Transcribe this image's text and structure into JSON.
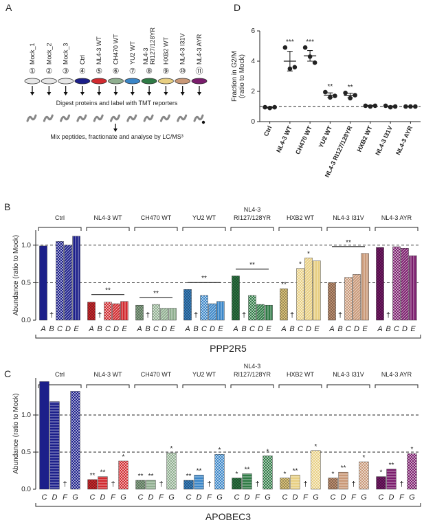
{
  "schematic": {
    "label": "A",
    "samples": [
      {
        "name": [
          "Mock_1"
        ],
        "number": "①",
        "color": "#e6e6e6"
      },
      {
        "name": [
          "Mock_2"
        ],
        "number": "②",
        "color": "#e6e6e6"
      },
      {
        "name": [
          "Mock_3"
        ],
        "number": "③",
        "color": "#e6e6e6"
      },
      {
        "name": [
          "Ctrl"
        ],
        "number": "④",
        "color": "#1c1f8a"
      },
      {
        "name": [
          "NL4-3 WT"
        ],
        "number": "⑤",
        "color": "#d12a2f"
      },
      {
        "name": [
          "CH470 WT"
        ],
        "number": "⑥",
        "color": "#8fae8f"
      },
      {
        "name": [
          "YU2 WT"
        ],
        "number": "⑦",
        "color": "#3b86c8"
      },
      {
        "name": [
          "NL4-3",
          "RI127/128YR"
        ],
        "number": "⑧",
        "color": "#2f7a45"
      },
      {
        "name": [
          "HXB2 WT"
        ],
        "number": "⑨",
        "color": "#e8cf82"
      },
      {
        "name": [
          "NL4-3 I31V"
        ],
        "number": "⑩",
        "color": "#c99877"
      },
      {
        "name": [
          "NL4-3 AYR"
        ],
        "number": "⑪",
        "color": "#7a1c6c"
      }
    ],
    "step1": "Digest proteins and label with TMT reporters",
    "step2": "Mix peptides, fractionate and analyse by LC/MS³"
  },
  "chart_data": [
    {
      "type": "dot",
      "label": "D",
      "ylabel": [
        "Fraction in G2/M",
        "(ratio to Mock)"
      ],
      "categories": [
        "Ctrl",
        "NL4-3 WT",
        "CH470 WT",
        "YU2 WT",
        "NL4-3 RI127/128YR",
        "HXB2 WT",
        "NL4-3 I31V",
        "NL4-3 AYR"
      ],
      "points": [
        [
          0.95,
          0.9,
          0.95
        ],
        [
          4.9,
          3.5,
          3.6
        ],
        [
          4.9,
          4.3,
          3.9
        ],
        [
          1.95,
          1.6,
          1.7
        ],
        [
          1.9,
          1.55,
          1.75
        ],
        [
          1.05,
          1.0,
          1.05
        ],
        [
          1.05,
          0.95,
          1.0
        ],
        [
          1.0,
          1.0,
          1.0
        ]
      ],
      "means": [
        0.93,
        4.0,
        4.35,
        1.75,
        1.73,
        1.05,
        1.0,
        1.0
      ],
      "errors": [
        0.03,
        0.65,
        0.35,
        0.15,
        0.15,
        0.03,
        0.04,
        0.02
      ],
      "significance": [
        null,
        "***",
        "***",
        "**",
        "**",
        null,
        null,
        null
      ],
      "reference_line": 1,
      "color": "#222222",
      "ylim": [
        0,
        6
      ],
      "yticks": [
        0,
        2,
        4,
        6
      ]
    },
    {
      "type": "grouped-bar",
      "label": "B",
      "title": "PPP2R5",
      "ylabel": "Abundance (ratio to Mock)",
      "groups": [
        [
          "Ctrl"
        ],
        [
          "NL4-3 WT"
        ],
        [
          "CH470 WT"
        ],
        [
          "YU2 WT"
        ],
        [
          "NL4-3",
          "RI127/128YR"
        ],
        [
          "HXB2 WT"
        ],
        [
          "NL4-3 I31V"
        ],
        [
          "NL4-3 AYR"
        ]
      ],
      "colors": [
        "#1c1f8a",
        "#d12a2f",
        "#8fae8f",
        "#3b86c8",
        "#2f7a45",
        "#e8cf82",
        "#c99877",
        "#7a1c6c"
      ],
      "subgroups": [
        "A",
        "B",
        "C",
        "D",
        "E"
      ],
      "missing_marker": "†",
      "values": [
        [
          0.99,
          null,
          1.05,
          1.0,
          1.12
        ],
        [
          0.24,
          null,
          0.24,
          0.22,
          0.25
        ],
        [
          0.2,
          null,
          0.21,
          0.16,
          0.16
        ],
        [
          0.41,
          null,
          0.33,
          0.22,
          0.25
        ],
        [
          0.59,
          null,
          0.33,
          0.21,
          0.2
        ],
        [
          0.42,
          null,
          0.69,
          0.83,
          0.79
        ],
        [
          0.5,
          null,
          0.57,
          0.61,
          0.89
        ],
        [
          0.97,
          null,
          0.98,
          0.96,
          0.86
        ]
      ],
      "bar_significance": [
        [
          null,
          null,
          null,
          null,
          null
        ],
        [
          null,
          null,
          null,
          null,
          null
        ],
        [
          null,
          null,
          null,
          null,
          null
        ],
        [
          null,
          null,
          null,
          null,
          null
        ],
        [
          null,
          null,
          null,
          null,
          null
        ],
        [
          "**",
          null,
          "*",
          "*",
          null
        ],
        [
          null,
          null,
          null,
          null,
          null
        ],
        [
          null,
          null,
          null,
          null,
          null
        ]
      ],
      "bracket_significance": [
        null,
        "**",
        "**",
        "**",
        "**",
        null,
        "**",
        null
      ],
      "reference_lines": [
        0.5,
        1
      ],
      "ylim": [
        0,
        1.2
      ],
      "yticks": [
        {
          "value": 0,
          "label": "0.0"
        },
        {
          "value": 0.5,
          "label": "0.5"
        },
        {
          "value": 1,
          "label": "1.0"
        }
      ]
    },
    {
      "type": "grouped-bar",
      "label": "C",
      "title": "APOBEC3",
      "ylabel": "Abundance (ratio to Mock)",
      "groups": [
        [
          "Ctrl"
        ],
        [
          "NL4-3 WT"
        ],
        [
          "CH470 WT"
        ],
        [
          "YU2 WT"
        ],
        [
          "NL4-3",
          "RI127/128YR"
        ],
        [
          "HXB2 WT"
        ],
        [
          "NL4-3 I31V"
        ],
        [
          "NL4-3 AYR"
        ]
      ],
      "colors": [
        "#1c1f8a",
        "#d12a2f",
        "#8fae8f",
        "#3b86c8",
        "#2f7a45",
        "#e8cf82",
        "#c99877",
        "#7a1c6c"
      ],
      "subgroups": [
        "C",
        "D",
        "F",
        "G"
      ],
      "missing_marker": "†",
      "values": [
        [
          1.45,
          1.18,
          null,
          1.32
        ],
        [
          0.13,
          0.17,
          null,
          0.38
        ],
        [
          0.12,
          0.12,
          null,
          0.49
        ],
        [
          0.12,
          0.19,
          null,
          0.47
        ],
        [
          0.15,
          0.21,
          null,
          0.45
        ],
        [
          0.15,
          0.19,
          null,
          0.52
        ],
        [
          0.15,
          0.23,
          null,
          0.37
        ],
        [
          0.17,
          0.27,
          null,
          0.48
        ]
      ],
      "bar_significance": [
        [
          null,
          null,
          null,
          null
        ],
        [
          "**",
          "**",
          null,
          "*"
        ],
        [
          "**",
          "**",
          null,
          "*"
        ],
        [
          "**",
          "**",
          null,
          "*"
        ],
        [
          "*",
          "**",
          null,
          "*"
        ],
        [
          "*",
          "**",
          null,
          "*"
        ],
        [
          "*",
          "**",
          null,
          "*"
        ],
        [
          "*",
          "**",
          null,
          "*"
        ]
      ],
      "reference_lines": [
        0.5,
        1
      ],
      "ylim": [
        0,
        1.5
      ],
      "yticks": [
        {
          "value": 0,
          "label": "0.0"
        },
        {
          "value": 0.5,
          "label": "0.5"
        },
        {
          "value": 1,
          "label": "1.0"
        }
      ]
    }
  ]
}
